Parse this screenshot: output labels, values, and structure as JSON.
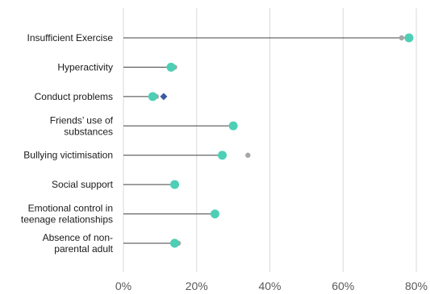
{
  "chart_data": {
    "type": "scatter",
    "subtype": "lollipop",
    "title": "",
    "xlabel": "",
    "ylabel": "",
    "xlim": [
      0,
      80
    ],
    "x_ticks": [
      0,
      20,
      40,
      60,
      80
    ],
    "x_tick_labels": [
      "0%",
      "20%",
      "40%",
      "60%",
      "80%"
    ],
    "grid": "vertical",
    "legend": "none",
    "categories": [
      {
        "lines": [
          "Insufficient Exercise"
        ]
      },
      {
        "lines": [
          "Hyperactivity"
        ]
      },
      {
        "lines": [
          "Conduct problems"
        ]
      },
      {
        "lines": [
          "Friends’ use of",
          "substances"
        ]
      },
      {
        "lines": [
          "Bullying victimisation"
        ]
      },
      {
        "lines": [
          "Social support"
        ]
      },
      {
        "lines": [
          "Emotional control in",
          "teenage relationships"
        ]
      },
      {
        "lines": [
          "Absence of non-",
          "parental adult"
        ]
      }
    ],
    "stems": [
      78,
      13,
      8,
      30,
      27,
      14,
      25,
      14
    ],
    "series": [
      {
        "marker": "circle-small",
        "color": "#a6a6a6",
        "values": [
          76,
          14,
          9,
          30,
          34,
          14,
          25,
          15
        ]
      },
      {
        "marker": "diamond",
        "color": "#3a5ba0",
        "values": [
          null,
          13,
          11,
          null,
          null,
          null,
          null,
          null
        ]
      },
      {
        "marker": "circle",
        "color": "#4dcfb5",
        "values": [
          78,
          13,
          8,
          30,
          27,
          14,
          25,
          14
        ]
      }
    ]
  }
}
